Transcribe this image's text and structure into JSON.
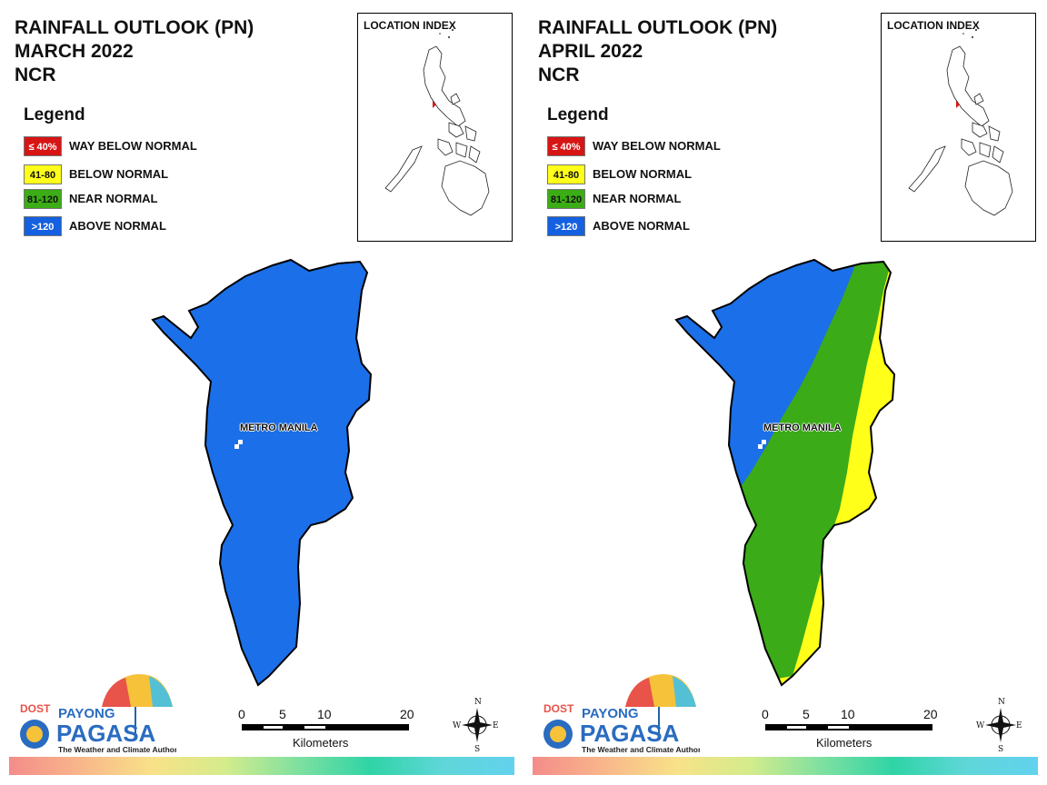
{
  "panels": [
    {
      "title_lines": [
        "RAINFALL OUTLOOK (PN)",
        "MARCH 2022",
        "NCR"
      ],
      "fill_pattern": "all-above-normal"
    },
    {
      "title_lines": [
        "RAINFALL OUTLOOK (PN)",
        "APRIL 2022",
        "NCR"
      ],
      "fill_pattern": "mixed-diagonal"
    }
  ],
  "legend": {
    "title": "Legend",
    "items": [
      {
        "swatch": "≤ 40%",
        "label": "WAY BELOW NORMAL",
        "color": "#d71515",
        "text_color": "#ffffff"
      },
      {
        "swatch": "41-80",
        "label": "BELOW NORMAL",
        "color": "#ffff1a",
        "text_color": "#111111"
      },
      {
        "swatch": "81-120",
        "label": "NEAR NORMAL",
        "color": "#3bad16",
        "text_color": "#111111"
      },
      {
        "swatch": ">120",
        "label": "ABOVE NORMAL",
        "color": "#1560e0",
        "text_color": "#ffffff"
      }
    ]
  },
  "location_index": {
    "title": "LOCATION INDEX"
  },
  "map": {
    "place_label": "METRO MANILA"
  },
  "logo": {
    "top_text": "DOST",
    "brand1": "PAYONG",
    "brand2": "PAGASA",
    "tagline": "The Weather and Climate Authority"
  },
  "scale": {
    "ticks": [
      "0",
      "5",
      "10",
      "20"
    ],
    "units": "Kilometers"
  },
  "compass": {
    "n": "N",
    "s": "S",
    "e": "E",
    "w": "W"
  },
  "colors": {
    "above_normal": "#1b6fe8",
    "near_normal": "#3bab18",
    "below_normal": "#ffff1a"
  }
}
